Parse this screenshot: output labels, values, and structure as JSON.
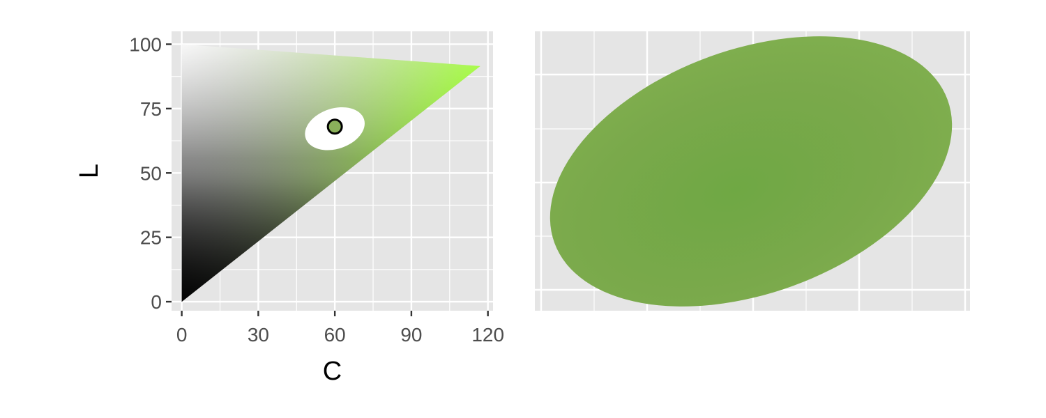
{
  "chart_data": [
    {
      "type": "scatter",
      "panel": "left",
      "xlabel": "C",
      "ylabel": "L",
      "xlim": [
        -4,
        122
      ],
      "ylim": [
        -3.5,
        105
      ],
      "x_ticks": [
        0,
        30,
        60,
        90,
        120
      ],
      "y_ticks": [
        0,
        25,
        50,
        75,
        100
      ],
      "grid": true,
      "gamut_hue": "green",
      "gamut_region": [
        {
          "C": 0,
          "L": 0
        },
        {
          "C": 0,
          "L": 100
        },
        {
          "C": 117,
          "L": 91.5
        }
      ],
      "highlight_ellipse": {
        "center_C": 60,
        "center_L": 68,
        "color": "#ffffff"
      },
      "points": [
        {
          "C": 60,
          "L": 68,
          "color": "#8ab05a"
        }
      ]
    },
    {
      "type": "scatter",
      "panel": "right",
      "grid": true,
      "description_color": "#7aaa48",
      "region_colors": [
        "#85b055",
        "#72a640",
        "#7aa14c",
        "#689c38"
      ]
    }
  ],
  "colors": {
    "panel_background": "#e5e5e5",
    "grid": "#ffffff",
    "gamut_green_max": "#88ff00",
    "black": "#000000",
    "white": "#ffffff"
  }
}
